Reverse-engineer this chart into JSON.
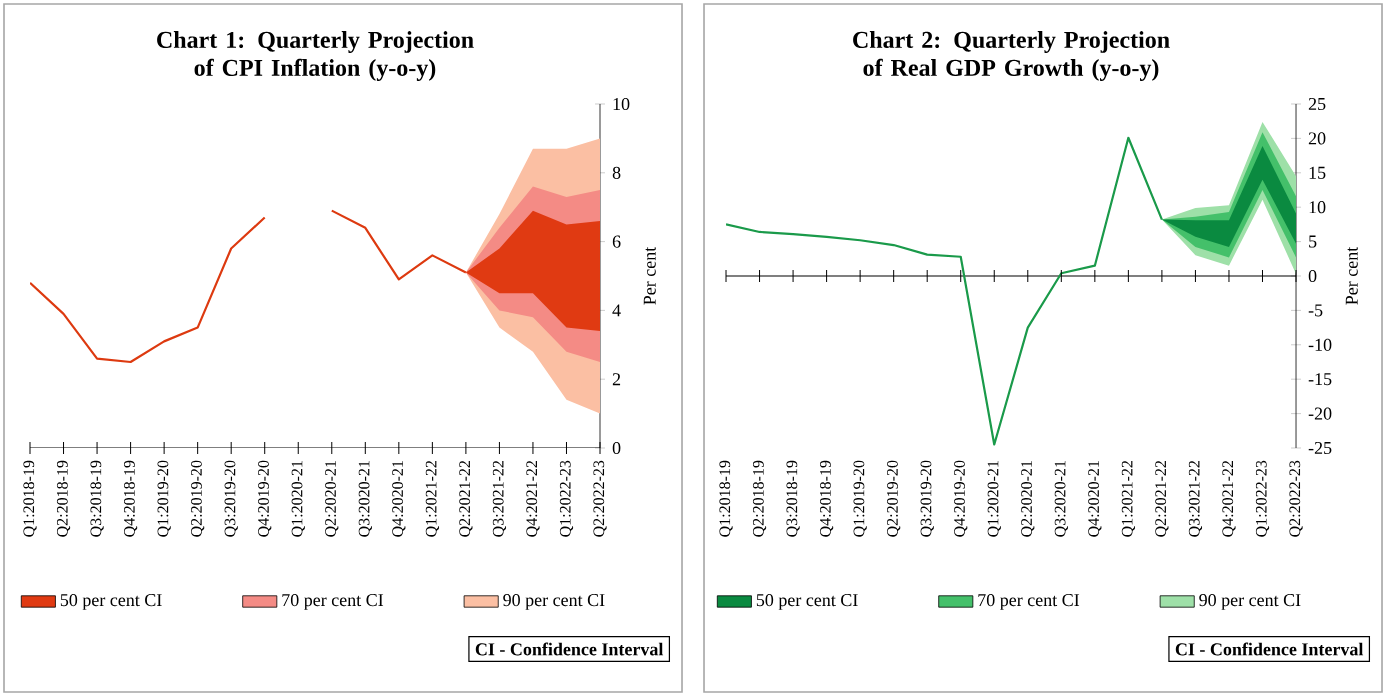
{
  "chart_data": [
    {
      "type": "line",
      "title": "Chart 1: Quarterly Projection of CPI Inflation (y-o-y)",
      "ylabel": "Per cent",
      "categories": [
        "Q1:2018-19",
        "Q2:2018-19",
        "Q3:2018-19",
        "Q4:2018-19",
        "Q1:2019-20",
        "Q2:2019-20",
        "Q3:2019-20",
        "Q4:2019-20",
        "Q1:2020-21",
        "Q2:2020-21",
        "Q3:2020-21",
        "Q4:2020-21",
        "Q1:2021-22",
        "Q2:2021-22",
        "Q3:2021-22",
        "Q4:2021-22",
        "Q1:2022-23",
        "Q2:2022-23"
      ],
      "ylim": [
        0,
        10
      ],
      "yticks": [
        0,
        2,
        4,
        6,
        8,
        10
      ],
      "legend": "bottom",
      "annotations": [
        "CI - Confidence Interval"
      ],
      "series": [
        {
          "type": "line",
          "color": "#dd3a10",
          "values": [
            4.8,
            3.9,
            2.6,
            2.5,
            3.1,
            3.5,
            5.8,
            6.7,
            null,
            6.9,
            6.4,
            4.9,
            5.6,
            5.1,
            null,
            null,
            null,
            null
          ]
        },
        {
          "type": "area",
          "name": "50 per cent CI",
          "color": "#e03a12",
          "values": [
            null,
            null,
            null,
            null,
            null,
            null,
            null,
            null,
            null,
            null,
            null,
            null,
            null,
            null,
            null,
            null,
            null,
            null
          ],
          "lower": [
            null,
            null,
            null,
            null,
            null,
            null,
            null,
            null,
            null,
            null,
            null,
            null,
            null,
            5.1,
            4.5,
            4.5,
            3.5,
            3.4
          ],
          "upper": [
            null,
            null,
            null,
            null,
            null,
            null,
            null,
            null,
            null,
            null,
            null,
            null,
            null,
            5.1,
            5.8,
            6.9,
            6.5,
            6.6
          ]
        },
        {
          "type": "area",
          "name": "70 per cent CI",
          "color": "#f48b85",
          "values": [
            null,
            null,
            null,
            null,
            null,
            null,
            null,
            null,
            null,
            null,
            null,
            null,
            null,
            null,
            null,
            null,
            null,
            null
          ],
          "lower": [
            null,
            null,
            null,
            null,
            null,
            null,
            null,
            null,
            null,
            null,
            null,
            null,
            null,
            5.1,
            4.0,
            3.8,
            2.8,
            2.5
          ],
          "upper": [
            null,
            null,
            null,
            null,
            null,
            null,
            null,
            null,
            null,
            null,
            null,
            null,
            null,
            5.1,
            6.4,
            7.6,
            7.3,
            7.5
          ]
        },
        {
          "type": "area",
          "name": "90 per cent CI",
          "color": "#fbbfa3",
          "values": [
            null,
            null,
            null,
            null,
            null,
            null,
            null,
            null,
            null,
            null,
            null,
            null,
            null,
            null,
            null,
            null,
            null,
            null
          ],
          "lower": [
            null,
            null,
            null,
            null,
            null,
            null,
            null,
            null,
            null,
            null,
            null,
            null,
            null,
            5.1,
            3.5,
            2.8,
            1.4,
            1.0
          ],
          "upper": [
            null,
            null,
            null,
            null,
            null,
            null,
            null,
            null,
            null,
            null,
            null,
            null,
            null,
            5.1,
            6.8,
            8.7,
            8.7,
            9.0
          ]
        }
      ]
    },
    {
      "type": "line",
      "title": "Chart 2: Quarterly Projection of Real GDP Growth (y-o-y)",
      "ylabel": "Per cent",
      "categories": [
        "Q1:2018-19",
        "Q2:2018-19",
        "Q3:2018-19",
        "Q4:2018-19",
        "Q1:2019-20",
        "Q2:2019-20",
        "Q3:2019-20",
        "Q4:2019-20",
        "Q1:2020-21",
        "Q2:2020-21",
        "Q3:2020-21",
        "Q4:2020-21",
        "Q1:2021-22",
        "Q2:2021-22",
        "Q3:2021-22",
        "Q4:2021-22",
        "Q1:2022-23",
        "Q2:2022-23"
      ],
      "ylim": [
        -25,
        25
      ],
      "yticks": [
        -25,
        -20,
        -15,
        -10,
        -5,
        0,
        5,
        10,
        15,
        20,
        25
      ],
      "legend": "bottom",
      "annotations": [
        "CI - Confidence Interval"
      ],
      "series": [
        {
          "type": "line",
          "color": "#1a9a4a",
          "values": [
            7.5,
            6.4,
            6.1,
            5.7,
            5.2,
            4.5,
            3.1,
            2.8,
            -24.5,
            -7.5,
            0.4,
            1.5,
            20.1,
            8.2,
            null,
            null,
            null,
            null
          ]
        },
        {
          "type": "area",
          "name": "50 per cent CI",
          "color": "#0a8a40",
          "values": [
            null,
            null,
            null,
            null,
            null,
            null,
            null,
            null,
            null,
            null,
            null,
            null,
            null,
            null,
            null,
            null,
            null,
            null
          ],
          "lower": [
            null,
            null,
            null,
            null,
            null,
            null,
            null,
            null,
            null,
            null,
            null,
            null,
            null,
            8.2,
            5.7,
            4.2,
            14.0,
            4.7
          ],
          "upper": [
            null,
            null,
            null,
            null,
            null,
            null,
            null,
            null,
            null,
            null,
            null,
            null,
            null,
            8.2,
            8.1,
            8.1,
            18.9,
            9.1
          ]
        },
        {
          "type": "area",
          "name": "70 per cent CI",
          "color": "#44c06a",
          "values": [
            null,
            null,
            null,
            null,
            null,
            null,
            null,
            null,
            null,
            null,
            null,
            null,
            null,
            null,
            null,
            null,
            null,
            null
          ],
          "lower": [
            null,
            null,
            null,
            null,
            null,
            null,
            null,
            null,
            null,
            null,
            null,
            null,
            null,
            8.2,
            4.2,
            2.7,
            12.5,
            2.7
          ],
          "upper": [
            null,
            null,
            null,
            null,
            null,
            null,
            null,
            null,
            null,
            null,
            null,
            null,
            null,
            8.2,
            8.6,
            9.3,
            20.9,
            11.6
          ]
        },
        {
          "type": "area",
          "name": "90 per cent CI",
          "color": "#9ee0a8",
          "values": [
            null,
            null,
            null,
            null,
            null,
            null,
            null,
            null,
            null,
            null,
            null,
            null,
            null,
            null,
            null,
            null,
            null,
            null
          ],
          "lower": [
            null,
            null,
            null,
            null,
            null,
            null,
            null,
            null,
            null,
            null,
            null,
            null,
            null,
            8.2,
            3.0,
            1.5,
            11.1,
            0.3
          ],
          "upper": [
            null,
            null,
            null,
            null,
            null,
            null,
            null,
            null,
            null,
            null,
            null,
            null,
            null,
            8.2,
            9.9,
            10.3,
            22.4,
            14.5
          ]
        }
      ]
    }
  ]
}
